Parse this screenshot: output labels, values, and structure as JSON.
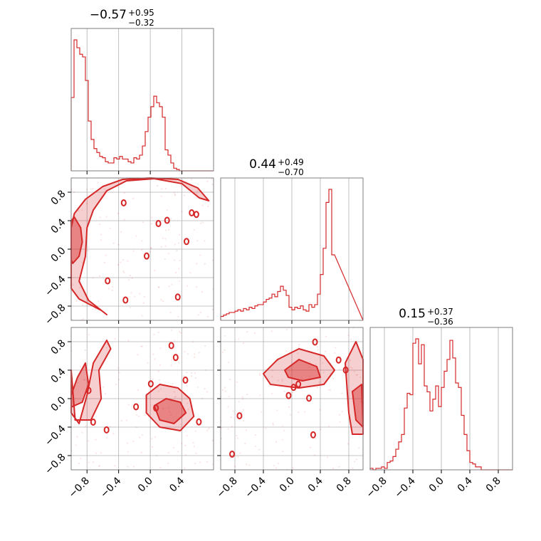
{
  "chart_data": {
    "type": "corner",
    "parameters": [
      {
        "title_value": "−0.57",
        "title_upper": "+0.95",
        "title_lower": "−0.32",
        "range": [
          -1.0,
          0.8
        ]
      },
      {
        "title_value": "0.44",
        "title_upper": "+0.49",
        "title_lower": "−0.70",
        "range": [
          -1.0,
          1.0
        ]
      },
      {
        "title_value": "0.15",
        "title_upper": "+0.37",
        "title_lower": "−0.36",
        "range": [
          -1.0,
          1.0
        ]
      }
    ],
    "tick_labels": {
      "p0": [
        "−0.8",
        "−0.4",
        "0.0",
        "0.4"
      ],
      "p0_values": [
        -0.8,
        -0.4,
        0.0,
        0.4
      ],
      "p1": [
        "−0.8",
        "−0.4",
        "0.0",
        "0.4",
        "0.8"
      ],
      "p1_values": [
        -0.8,
        -0.4,
        0.0,
        0.4,
        0.8
      ],
      "p2": [
        "−0.8",
        "−0.4",
        "0.0",
        "0.4",
        "0.8"
      ],
      "p2_values": [
        -0.8,
        -0.4,
        0.0,
        0.4,
        0.8
      ]
    },
    "histograms": [
      {
        "param": 0,
        "bin_edges_start": -1.0,
        "bin_width": 0.036,
        "counts": [
          0.56,
          1.0,
          0.94,
          0.89,
          0.87,
          0.69,
          0.38,
          0.24,
          0.17,
          0.14,
          0.11,
          0.1,
          0.07,
          0.06,
          0.06,
          0.1,
          0.09,
          0.11,
          0.09,
          0.09,
          0.07,
          0.06,
          0.1,
          0.09,
          0.12,
          0.19,
          0.3,
          0.41,
          0.49,
          0.57,
          0.52,
          0.49,
          0.41,
          0.16,
          0.12,
          0.06,
          0.02,
          0.01,
          0.0,
          0.0
        ]
      },
      {
        "param": 1,
        "bin_edges_start": -1.0,
        "bin_width": 0.04,
        "counts": [
          0.03,
          0.04,
          0.05,
          0.06,
          0.06,
          0.07,
          0.08,
          0.07,
          0.09,
          0.08,
          0.1,
          0.09,
          0.11,
          0.12,
          0.12,
          0.14,
          0.16,
          0.17,
          0.2,
          0.18,
          0.22,
          0.26,
          0.23,
          0.19,
          0.1,
          0.08,
          0.1,
          0.09,
          0.11,
          0.08,
          0.07,
          0.12,
          0.1,
          0.12,
          0.2,
          0.35,
          0.55,
          0.9,
          1.0,
          0.5
        ]
      },
      {
        "param": 2,
        "bin_edges_start": -1.0,
        "bin_width": 0.04,
        "counts": [
          0.01,
          0.0,
          0.01,
          0.01,
          0.02,
          0.01,
          0.05,
          0.06,
          0.09,
          0.14,
          0.19,
          0.24,
          0.42,
          0.52,
          0.51,
          0.86,
          0.89,
          0.72,
          0.85,
          0.57,
          0.53,
          0.4,
          0.48,
          0.57,
          0.43,
          0.56,
          0.67,
          0.75,
          0.88,
          0.76,
          0.59,
          0.56,
          0.37,
          0.24,
          0.13,
          0.05,
          0.04,
          0.02,
          0.02,
          0.0
        ]
      }
    ],
    "contour_panels": [
      {
        "x_param": 0,
        "y_param": 1,
        "inner_region": [
          [
            -0.98,
            -0.2
          ],
          [
            -0.9,
            -0.1
          ],
          [
            -0.86,
            0.1
          ],
          [
            -0.88,
            0.3
          ],
          [
            -0.96,
            0.45
          ],
          [
            -1.0,
            0.4
          ],
          [
            -1.0,
            -0.15
          ]
        ],
        "outer_region": [
          [
            -1.0,
            -0.55
          ],
          [
            -0.9,
            -0.7
          ],
          [
            -0.62,
            -0.86
          ],
          [
            -0.55,
            -0.92
          ],
          [
            -0.78,
            -0.72
          ],
          [
            -0.9,
            -0.45
          ],
          [
            -0.82,
            -0.1
          ],
          [
            -0.8,
            0.3
          ],
          [
            -0.72,
            0.55
          ],
          [
            -0.55,
            0.82
          ],
          [
            -0.3,
            0.96
          ],
          [
            0.05,
            0.99
          ],
          [
            0.4,
            0.92
          ],
          [
            0.62,
            0.72
          ],
          [
            0.74,
            0.68
          ],
          [
            0.6,
            0.86
          ],
          [
            0.35,
            0.98
          ],
          [
            0.0,
            1.0
          ],
          [
            -0.35,
            0.98
          ],
          [
            -0.6,
            0.88
          ],
          [
            -0.82,
            0.7
          ],
          [
            -0.96,
            0.5
          ],
          [
            -1.0,
            0.3
          ]
        ]
      },
      {
        "x_param": 0,
        "y_param": 2,
        "region_a_inner": [
          [
            -1.0,
            0.05
          ],
          [
            -0.92,
            0.3
          ],
          [
            -0.82,
            0.5
          ],
          [
            -0.78,
            0.2
          ],
          [
            -0.86,
            -0.05
          ],
          [
            -1.0,
            -0.12
          ]
        ],
        "region_a_outer": [
          [
            -1.0,
            -0.2
          ],
          [
            -0.9,
            -0.35
          ],
          [
            -0.8,
            0.05
          ],
          [
            -0.72,
            0.5
          ],
          [
            -0.55,
            0.82
          ],
          [
            -0.5,
            0.7
          ],
          [
            -0.65,
            0.4
          ],
          [
            -0.62,
            0.0
          ],
          [
            -0.75,
            -0.3
          ],
          [
            -0.95,
            -0.3
          ],
          [
            -1.0,
            0.4
          ]
        ],
        "region_b_inner": [
          [
            0.05,
            -0.1
          ],
          [
            0.2,
            0.0
          ],
          [
            0.38,
            -0.05
          ],
          [
            0.45,
            -0.2
          ],
          [
            0.3,
            -0.35
          ],
          [
            0.12,
            -0.3
          ]
        ],
        "region_b_outer": [
          [
            -0.05,
            0.05
          ],
          [
            0.12,
            0.2
          ],
          [
            0.35,
            0.15
          ],
          [
            0.5,
            0.0
          ],
          [
            0.55,
            -0.25
          ],
          [
            0.38,
            -0.45
          ],
          [
            0.12,
            -0.4
          ],
          [
            -0.05,
            -0.2
          ]
        ]
      },
      {
        "x_param": 1,
        "y_param": 2,
        "region_a_inner": [
          [
            -0.1,
            0.4
          ],
          [
            0.1,
            0.55
          ],
          [
            0.35,
            0.45
          ],
          [
            0.4,
            0.3
          ],
          [
            0.15,
            0.25
          ],
          [
            -0.05,
            0.3
          ]
        ],
        "region_a_outer": [
          [
            -0.4,
            0.35
          ],
          [
            -0.2,
            0.55
          ],
          [
            0.1,
            0.7
          ],
          [
            0.45,
            0.6
          ],
          [
            0.6,
            0.4
          ],
          [
            0.45,
            0.2
          ],
          [
            0.1,
            0.15
          ],
          [
            -0.3,
            0.2
          ]
        ],
        "region_b_inner": [
          [
            0.85,
            0.1
          ],
          [
            0.98,
            0.2
          ],
          [
            1.0,
            -0.4
          ],
          [
            0.9,
            -0.3
          ]
        ],
        "region_b_outer": [
          [
            0.75,
            0.5
          ],
          [
            0.9,
            0.8
          ],
          [
            1.0,
            0.55
          ],
          [
            1.0,
            -0.5
          ],
          [
            0.85,
            -0.5
          ],
          [
            0.8,
            -0.2
          ]
        ]
      }
    ]
  }
}
